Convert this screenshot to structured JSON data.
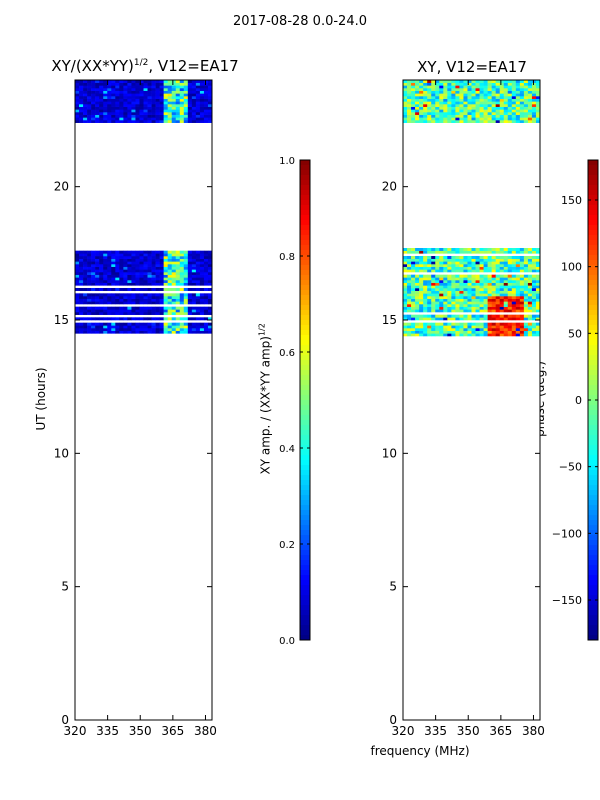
{
  "figure": {
    "suptitle": "2017-08-28 0.0-24.0",
    "xlabel": "frequency (MHz)"
  },
  "chart_data": [
    {
      "type": "heatmap",
      "title_main": "XY/(XX*YY)",
      "title_sup": "1/2",
      "title_tail": ", V12=EA17",
      "xlabel": "",
      "ylabel": "UT (hours)",
      "x_ticks": [
        320,
        335,
        350,
        365,
        380
      ],
      "y_ticks": [
        0,
        5,
        10,
        15,
        20
      ],
      "xlim": [
        320,
        383
      ],
      "ylim": [
        0,
        24
      ],
      "data_bands_hours": [
        [
          14.4,
          17.7
        ],
        [
          22.4,
          24.0
        ]
      ],
      "colorbar": {
        "label_main": "XY amp. / (XX*YY amp)",
        "label_sup": "1/2",
        "ticks": [
          "0.0",
          "0.2",
          "0.4",
          "0.6",
          "0.8",
          "1.0"
        ],
        "range": [
          0,
          1
        ]
      }
    },
    {
      "type": "heatmap",
      "title": "XY, V12=EA17",
      "xlabel": "",
      "ylabel": "",
      "x_ticks": [
        320,
        335,
        350,
        365,
        380
      ],
      "y_ticks": [
        0,
        5,
        10,
        15,
        20
      ],
      "xlim": [
        320,
        383
      ],
      "ylim": [
        0,
        24
      ],
      "data_bands_hours": [
        [
          14.4,
          17.7
        ],
        [
          22.4,
          24.0
        ]
      ],
      "colorbar": {
        "label": "phase (deg.)",
        "ticks": [
          "−150",
          "−100",
          "−50",
          "0",
          "50",
          "100",
          "150"
        ],
        "tick_values": [
          -150,
          -100,
          -50,
          0,
          50,
          100,
          150
        ],
        "range": [
          -180,
          180
        ]
      }
    }
  ],
  "colormap": "jet"
}
